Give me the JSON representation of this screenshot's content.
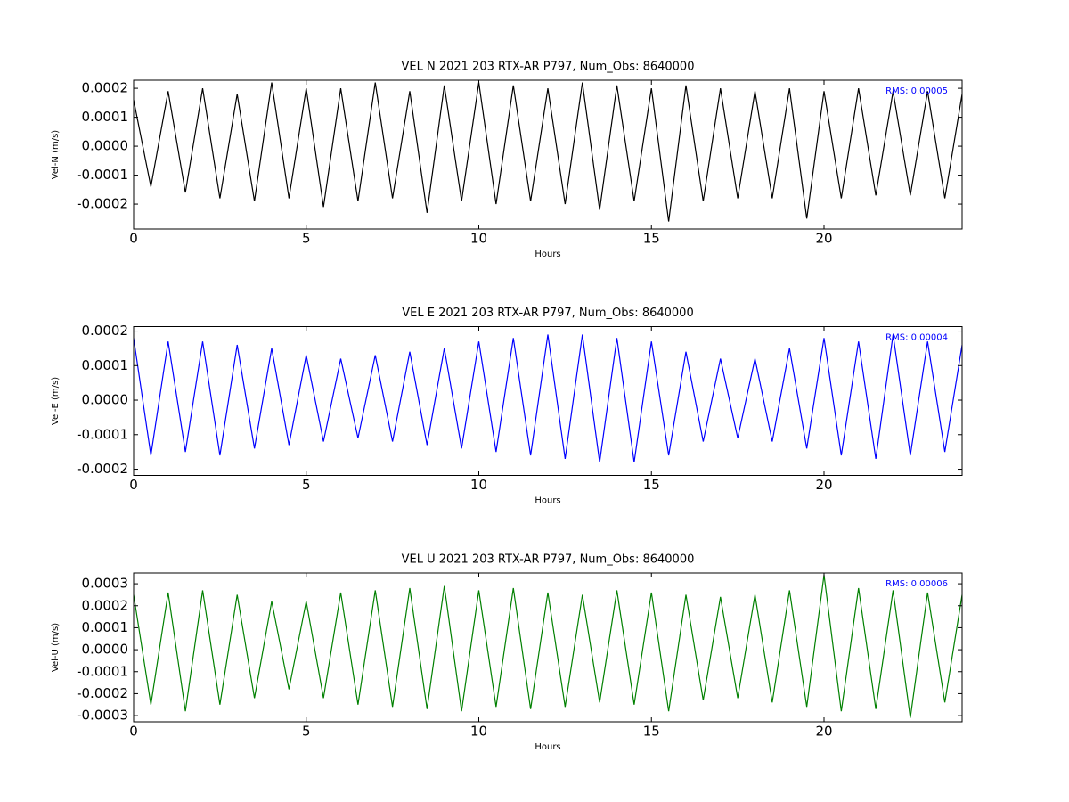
{
  "chart_data": [
    {
      "type": "line",
      "title": "VEL N 2021 203 RTX-AR  P797, Num_Obs: 8640000",
      "xlabel": "Hours",
      "ylabel": "Vel-N (m/s)",
      "annotation": "RMS:  0.00005",
      "annotation_color": "#0000ff",
      "color": "#000000",
      "x": [
        0,
        0.5,
        1,
        1.5,
        2,
        2.5,
        3,
        3.5,
        4,
        4.5,
        5,
        5.5,
        6,
        6.5,
        7,
        7.5,
        8,
        8.5,
        9,
        9.5,
        10,
        10.5,
        11,
        11.5,
        12,
        12.5,
        13,
        13.5,
        14,
        14.5,
        15,
        15.5,
        16,
        16.5,
        17,
        17.5,
        18,
        18.5,
        19,
        19.5,
        20,
        20.5,
        21,
        21.5,
        22,
        22.5,
        23,
        23.5,
        24
      ],
      "values": [
        0.00016,
        -0.00014,
        0.00019,
        -0.00016,
        0.0002,
        -0.00018,
        0.00018,
        -0.00019,
        0.00022,
        -0.00018,
        0.0002,
        -0.00021,
        0.0002,
        -0.00019,
        0.00022,
        -0.00018,
        0.00019,
        -0.00023,
        0.00021,
        -0.00019,
        0.00022,
        -0.0002,
        0.00021,
        -0.00019,
        0.0002,
        -0.0002,
        0.00022,
        -0.00022,
        0.00021,
        -0.00019,
        0.0002,
        -0.00026,
        0.00021,
        -0.00019,
        0.0002,
        -0.00018,
        0.00019,
        -0.00018,
        0.0002,
        -0.00025,
        0.00019,
        -0.00018,
        0.0002,
        -0.00017,
        0.00019,
        -0.00017,
        0.00019,
        -0.00018,
        0.00018
      ],
      "xlim": [
        0,
        24
      ],
      "xticks": [
        0,
        5,
        10,
        15,
        20
      ],
      "ylim": [
        -0.000286,
        0.000228
      ],
      "yticks": [
        -0.0002,
        -0.0001,
        {
          "value": 0,
          "label": "0.0000"
        },
        0.0001,
        0.0002
      ]
    },
    {
      "type": "line",
      "title": "VEL E 2021 203 RTX-AR  P797, Num_Obs: 8640000",
      "xlabel": "Hours",
      "ylabel": "Vel-E (m/s)",
      "annotation": "RMS:  0.00004",
      "annotation_color": "#0000ff",
      "color": "#0000ff",
      "x": [
        0,
        0.5,
        1,
        1.5,
        2,
        2.5,
        3,
        3.5,
        4,
        4.5,
        5,
        5.5,
        6,
        6.5,
        7,
        7.5,
        8,
        8.5,
        9,
        9.5,
        10,
        10.5,
        11,
        11.5,
        12,
        12.5,
        13,
        13.5,
        14,
        14.5,
        15,
        15.5,
        16,
        16.5,
        17,
        17.5,
        18,
        18.5,
        19,
        19.5,
        20,
        20.5,
        21,
        21.5,
        22,
        22.5,
        23,
        23.5,
        24
      ],
      "values": [
        0.00018,
        -0.00016,
        0.00017,
        -0.00015,
        0.00017,
        -0.00016,
        0.00016,
        -0.00014,
        0.00015,
        -0.00013,
        0.00013,
        -0.00012,
        0.00012,
        -0.00011,
        0.00013,
        -0.00012,
        0.00014,
        -0.00013,
        0.00015,
        -0.00014,
        0.00017,
        -0.00015,
        0.00018,
        -0.00016,
        0.00019,
        -0.00017,
        0.00019,
        -0.00018,
        0.00018,
        -0.00018,
        0.00017,
        -0.00016,
        0.00014,
        -0.00012,
        0.00012,
        -0.00011,
        0.00012,
        -0.00012,
        0.00015,
        -0.00014,
        0.00018,
        -0.00016,
        0.00017,
        -0.00017,
        0.00019,
        -0.00016,
        0.00017,
        -0.00015,
        0.00016
      ],
      "xlim": [
        0,
        24
      ],
      "xticks": [
        0,
        5,
        10,
        15,
        20
      ],
      "ylim": [
        -0.000218,
        0.000213
      ],
      "yticks": [
        -0.0002,
        -0.0001,
        {
          "value": 0,
          "label": "0.0000"
        },
        0.0001,
        0.0002
      ]
    },
    {
      "type": "line",
      "title": "VEL U 2021 203 RTX-AR  P797, Num_Obs: 8640000",
      "xlabel": "Hours",
      "ylabel": "Vel-U (m/s)",
      "annotation": "RMS:  0.00006",
      "annotation_color": "#0000ff",
      "color": "#008000",
      "x": [
        0,
        0.5,
        1,
        1.5,
        2,
        2.5,
        3,
        3.5,
        4,
        4.5,
        5,
        5.5,
        6,
        6.5,
        7,
        7.5,
        8,
        8.5,
        9,
        9.5,
        10,
        10.5,
        11,
        11.5,
        12,
        12.5,
        13,
        13.5,
        14,
        14.5,
        15,
        15.5,
        16,
        16.5,
        17,
        17.5,
        18,
        18.5,
        19,
        19.5,
        20,
        20.5,
        21,
        21.5,
        22,
        22.5,
        23,
        23.5,
        24
      ],
      "values": [
        0.00025,
        -0.00025,
        0.00026,
        -0.00028,
        0.00027,
        -0.00025,
        0.00025,
        -0.00022,
        0.00022,
        -0.00018,
        0.00022,
        -0.00022,
        0.00026,
        -0.00025,
        0.00027,
        -0.00026,
        0.00028,
        -0.00027,
        0.00029,
        -0.00028,
        0.00027,
        -0.00026,
        0.00028,
        -0.00027,
        0.00026,
        -0.00026,
        0.00025,
        -0.00024,
        0.00027,
        -0.00025,
        0.00026,
        -0.00028,
        0.00025,
        -0.00023,
        0.00024,
        -0.00022,
        0.00025,
        -0.00024,
        0.00027,
        -0.00026,
        0.00034,
        -0.00028,
        0.00028,
        -0.00027,
        0.00027,
        -0.00031,
        0.00026,
        -0.00024,
        0.00025
      ],
      "xlim": [
        0,
        24
      ],
      "xticks": [
        0,
        5,
        10,
        15,
        20
      ],
      "ylim": [
        -0.000328,
        0.000349
      ],
      "yticks": [
        -0.0003,
        -0.0002,
        -0.0001,
        {
          "value": 0,
          "label": "0.0000"
        },
        0.0001,
        0.0002,
        0.0003
      ]
    }
  ]
}
